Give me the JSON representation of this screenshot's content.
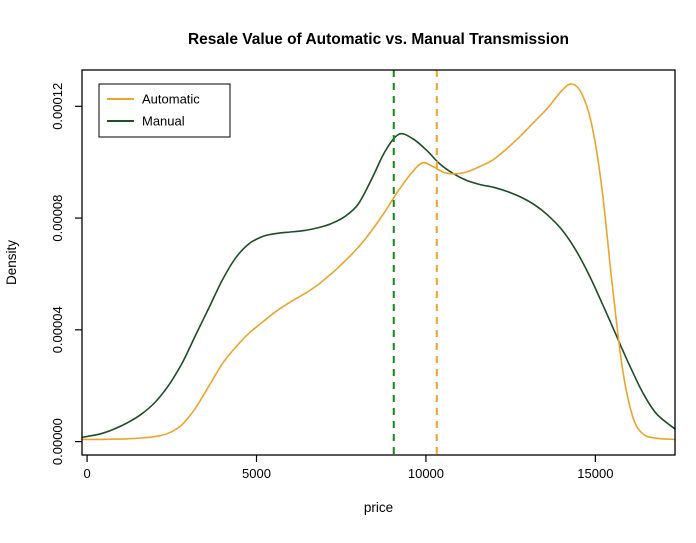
{
  "chart_data": {
    "type": "line",
    "title": "Resale Value of Automatic vs. Manual Transmission",
    "xlabel": "price",
    "ylabel": "Density",
    "xlim": [
      -150,
      17350
    ],
    "ylim": [
      -4.8e-06,
      0.000133
    ],
    "grid": false,
    "axis_color": "#000000",
    "x_ticks": [
      0,
      5000,
      10000,
      15000
    ],
    "x_tick_labels": [
      "0",
      "5000",
      "10000",
      "15000"
    ],
    "y_ticks": [
      0,
      4e-05,
      8e-05,
      0.00012
    ],
    "y_tick_labels": [
      "0.00000",
      "0.00004",
      "0.00008",
      "0.00012"
    ],
    "legend": {
      "position": "top-left",
      "entries": [
        {
          "label": "Automatic",
          "color": "#EEA32C"
        },
        {
          "label": "Manual",
          "color": "#1C4E27"
        }
      ]
    },
    "series": [
      {
        "name": "Manual",
        "color": "#1C4E27",
        "points": [
          [
            -150,
            1.5e-06
          ],
          [
            400,
            2.8e-06
          ],
          [
            800,
            4.5e-06
          ],
          [
            1200,
            6.8e-06
          ],
          [
            1600,
            9.8e-06
          ],
          [
            2000,
            1.4e-05
          ],
          [
            2400,
            2e-05
          ],
          [
            2800,
            2.8e-05
          ],
          [
            3200,
            3.8e-05
          ],
          [
            3600,
            4.8e-05
          ],
          [
            4000,
            5.8e-05
          ],
          [
            4400,
            6.6e-05
          ],
          [
            4800,
            7.1e-05
          ],
          [
            5200,
            7.35e-05
          ],
          [
            5600,
            7.45e-05
          ],
          [
            6000,
            7.5e-05
          ],
          [
            6400,
            7.55e-05
          ],
          [
            6800,
            7.65e-05
          ],
          [
            7200,
            7.8e-05
          ],
          [
            7600,
            8.05e-05
          ],
          [
            8000,
            8.5e-05
          ],
          [
            8400,
            9.4e-05
          ],
          [
            8800,
            0.000104
          ],
          [
            9200,
            0.00011
          ],
          [
            9600,
            0.0001085
          ],
          [
            10000,
            0.0001045
          ],
          [
            10400,
            9.95e-05
          ],
          [
            10800,
            9.6e-05
          ],
          [
            11200,
            9.35e-05
          ],
          [
            11600,
            9.2e-05
          ],
          [
            12000,
            9.1e-05
          ],
          [
            12400,
            8.95e-05
          ],
          [
            12800,
            8.75e-05
          ],
          [
            13200,
            8.48e-05
          ],
          [
            13600,
            8.1e-05
          ],
          [
            14000,
            7.6e-05
          ],
          [
            14400,
            6.9e-05
          ],
          [
            14800,
            6e-05
          ],
          [
            15200,
            4.95e-05
          ],
          [
            15600,
            3.85e-05
          ],
          [
            16000,
            2.75e-05
          ],
          [
            16400,
            1.75e-05
          ],
          [
            16800,
            1e-05
          ],
          [
            17350,
            4.5e-06
          ]
        ]
      },
      {
        "name": "Automatic",
        "color": "#EEA32C",
        "points": [
          [
            -150,
            8e-07
          ],
          [
            400,
            8e-07
          ],
          [
            800,
            9e-07
          ],
          [
            1200,
            1e-06
          ],
          [
            1600,
            1.3e-06
          ],
          [
            2000,
            1.8e-06
          ],
          [
            2400,
            3e-06
          ],
          [
            2800,
            6e-06
          ],
          [
            3200,
            1.2e-05
          ],
          [
            3600,
            2e-05
          ],
          [
            4000,
            2.8e-05
          ],
          [
            4400,
            3.4e-05
          ],
          [
            4800,
            3.9e-05
          ],
          [
            5200,
            4.3e-05
          ],
          [
            5600,
            4.68e-05
          ],
          [
            6000,
            5e-05
          ],
          [
            6400,
            5.28e-05
          ],
          [
            6800,
            5.6e-05
          ],
          [
            7200,
            6e-05
          ],
          [
            7600,
            6.45e-05
          ],
          [
            8000,
            6.95e-05
          ],
          [
            8400,
            7.55e-05
          ],
          [
            8800,
            8.25e-05
          ],
          [
            9200,
            9e-05
          ],
          [
            9600,
            9.65e-05
          ],
          [
            9900,
            9.98e-05
          ],
          [
            10200,
            9.85e-05
          ],
          [
            10500,
            9.65e-05
          ],
          [
            10800,
            9.58e-05
          ],
          [
            11200,
            9.65e-05
          ],
          [
            11600,
            9.85e-05
          ],
          [
            12000,
            0.000101
          ],
          [
            12400,
            0.000105
          ],
          [
            12800,
            0.0001095
          ],
          [
            13200,
            0.0001145
          ],
          [
            13600,
            0.0001195
          ],
          [
            14000,
            0.0001255
          ],
          [
            14300,
            0.000128
          ],
          [
            14600,
            0.0001245
          ],
          [
            14900,
            0.000113
          ],
          [
            15200,
            9e-05
          ],
          [
            15500,
            5.6e-05
          ],
          [
            15800,
            2.6e-05
          ],
          [
            16100,
            9e-06
          ],
          [
            16400,
            2.8e-06
          ],
          [
            16800,
            1.2e-06
          ],
          [
            17350,
            8e-07
          ]
        ]
      }
    ],
    "vlines": [
      {
        "name": "manual-vline",
        "x": 9050,
        "color": "#0D8C11",
        "style": "dashed"
      },
      {
        "name": "automatic-vline",
        "x": 10320,
        "color": "#EEA32C",
        "style": "dashed"
      }
    ]
  }
}
